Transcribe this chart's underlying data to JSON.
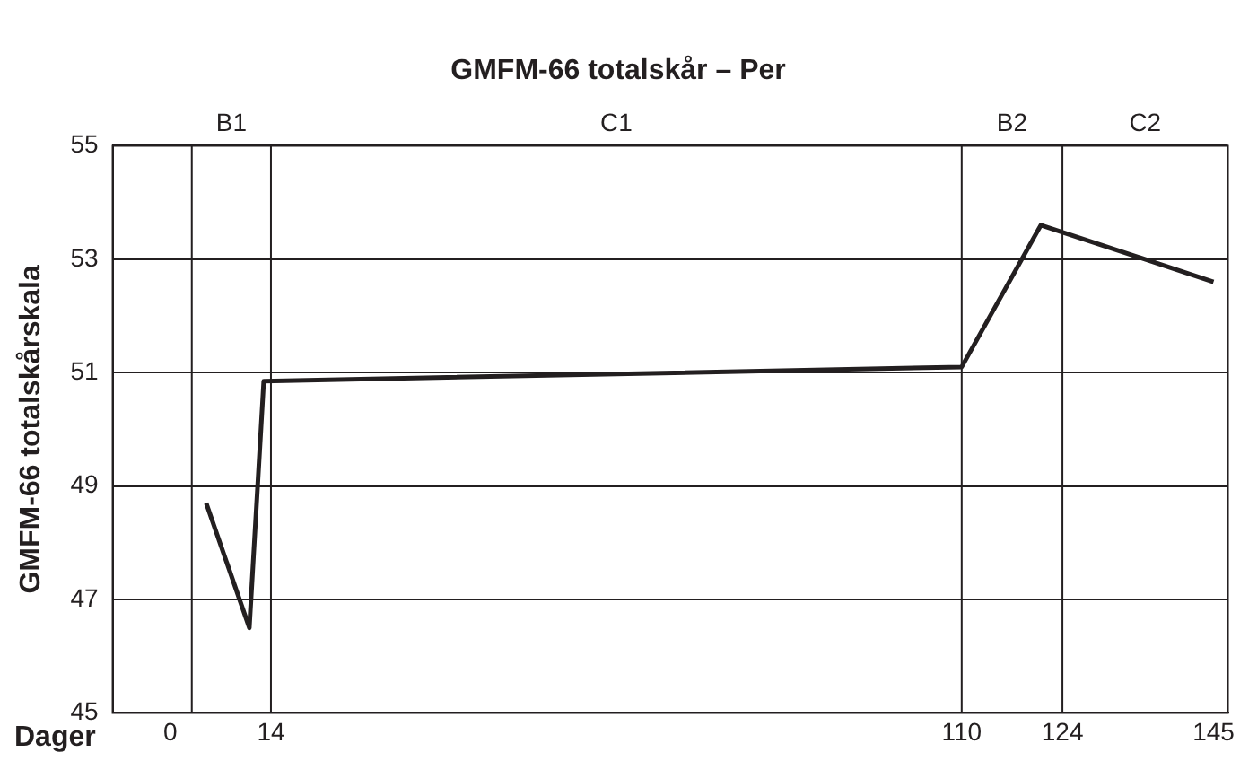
{
  "chart_data": {
    "type": "line",
    "title": "GMFM-66 totalskår – Per",
    "xlabel": "Dager",
    "ylabel": "GMFM-66 totalskårskala",
    "x": [
      5,
      11,
      13,
      110,
      121,
      145
    ],
    "series": [
      {
        "color": "#231f20",
        "values": [
          48.7,
          46.5,
          50.85,
          51.1,
          53.6,
          52.6
        ]
      }
    ],
    "xlim": [
      -8,
      147
    ],
    "xticks": [
      0,
      14,
      110,
      124,
      145
    ],
    "ylim": [
      45,
      55
    ],
    "yticks": [
      45,
      47,
      49,
      51,
      53,
      55
    ],
    "grid": "y",
    "legend": false,
    "marker": "none",
    "line_style": "solid",
    "ref_lines": [
      {
        "axis": "x",
        "value": 3
      },
      {
        "axis": "x",
        "value": 14
      },
      {
        "axis": "x",
        "value": 110
      },
      {
        "axis": "x",
        "value": 124
      }
    ],
    "annotations": [
      "B1",
      "C1",
      "B2",
      "C2"
    ]
  }
}
